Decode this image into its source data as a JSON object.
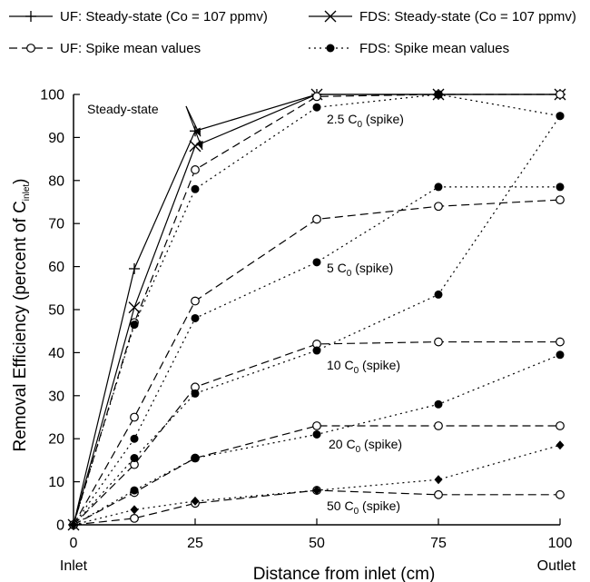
{
  "chart_data": {
    "type": "line",
    "xlabel": "Distance from inlet (cm)",
    "ylabel": "Removal Efficiency (percent of C",
    "ylabel_sub": "inlet",
    "ylabel_close": ")",
    "xlim": [
      0,
      100
    ],
    "ylim": [
      0,
      100
    ],
    "x_ticks": [
      0,
      25,
      50,
      75,
      100
    ],
    "y_ticks": [
      0,
      10,
      20,
      30,
      40,
      50,
      60,
      70,
      80,
      90,
      100
    ],
    "x_extra_labels": [
      "Inlet",
      "Outlet"
    ],
    "legend": [
      {
        "label": "UF: Steady-state (Co = 107 ppmv)",
        "marker": "plus",
        "dash": "solid"
      },
      {
        "label": "FDS: Steady-state (Co = 107 ppmv)",
        "marker": "x",
        "dash": "solid"
      },
      {
        "label": "UF: Spike mean values",
        "marker": "open-circle",
        "dash": "dashed"
      },
      {
        "label": "FDS: Spike mean values",
        "marker": "filled-circle",
        "dash": "dotted"
      }
    ],
    "annotations": [
      {
        "text": "Steady-state"
      },
      {
        "text": "2.5 C",
        "sub": "0",
        "suffix": " (spike)"
      },
      {
        "text": "5 C",
        "sub": "0",
        "suffix": " (spike)"
      },
      {
        "text": "10 C",
        "sub": "0",
        "suffix": " (spike)"
      },
      {
        "text": "20 C",
        "sub": "0",
        "suffix": " (spike)"
      },
      {
        "text": "50 C",
        "sub": "0",
        "suffix": " (spike)"
      }
    ],
    "series": [
      {
        "name": "UF: Steady-state (Co = 107 ppmv)",
        "marker": "plus",
        "dash": "solid",
        "x": [
          0,
          12.5,
          25,
          50,
          75,
          100
        ],
        "y": [
          0,
          59.5,
          91.5,
          100,
          100,
          100
        ]
      },
      {
        "name": "FDS: Steady-state (Co = 107 ppmv)",
        "marker": "x",
        "dash": "solid",
        "x": [
          0,
          12.5,
          25,
          50,
          75,
          100
        ],
        "y": [
          0,
          50.5,
          88,
          100,
          100,
          100
        ]
      },
      {
        "group": "2.5 C0 (spike)",
        "marker": "open-circle",
        "dash": "dashed",
        "x": [
          0,
          12.5,
          25,
          50,
          75,
          100
        ],
        "y": [
          0,
          47,
          82.5,
          99.5,
          100,
          100
        ]
      },
      {
        "group": "2.5 C0 (spike)",
        "marker": "filled-circle",
        "dash": "dotted",
        "x": [
          0,
          12.5,
          25,
          50,
          75,
          100
        ],
        "y": [
          0,
          46.5,
          78,
          97,
          100,
          95
        ]
      },
      {
        "group": "5 C0 (spike)",
        "marker": "open-circle",
        "dash": "dashed",
        "x": [
          0,
          12.5,
          25,
          50,
          75,
          100
        ],
        "y": [
          0,
          25,
          52,
          71,
          74,
          75.5
        ]
      },
      {
        "group": "5 C0 (spike)",
        "marker": "filled-circle",
        "dash": "dotted",
        "x": [
          0,
          12.5,
          25,
          50,
          75,
          100
        ],
        "y": [
          0,
          20,
          48,
          61,
          78.5,
          78.5
        ]
      },
      {
        "group": "10 C0 (spike)",
        "marker": "open-circle",
        "dash": "dashed",
        "x": [
          0,
          12.5,
          25,
          50,
          75,
          100
        ],
        "y": [
          0,
          14,
          32,
          42,
          42.5,
          42.5
        ]
      },
      {
        "group": "10 C0 (spike)",
        "marker": "filled-circle",
        "dash": "dotted",
        "x": [
          0,
          12.5,
          25,
          50,
          75,
          100
        ],
        "y": [
          0,
          15.5,
          30.5,
          40.5,
          53.5,
          95
        ]
      },
      {
        "group": "20 C0 (spike)",
        "marker": "open-circle",
        "dash": "dashed",
        "x": [
          0,
          12.5,
          25,
          50,
          75,
          100
        ],
        "y": [
          0,
          7.5,
          15.5,
          23,
          23,
          23
        ]
      },
      {
        "group": "20 C0 (spike)",
        "marker": "filled-circle",
        "dash": "dotted",
        "x": [
          0,
          12.5,
          25,
          50,
          75,
          100
        ],
        "y": [
          0,
          8,
          15.5,
          21,
          28,
          39.5
        ]
      },
      {
        "group": "50 C0 (spike)",
        "marker": "open-circle",
        "dash": "dashed",
        "x": [
          0,
          12.5,
          25,
          50,
          75,
          100
        ],
        "y": [
          0,
          1.5,
          5,
          8,
          7,
          7
        ]
      },
      {
        "group": "50 C0 (spike)",
        "marker": "filled-diamond",
        "dash": "dotted",
        "x": [
          0,
          12.5,
          25,
          50,
          75,
          100
        ],
        "y": [
          0,
          3.5,
          5.5,
          8,
          10.5,
          18.5
        ]
      }
    ]
  }
}
